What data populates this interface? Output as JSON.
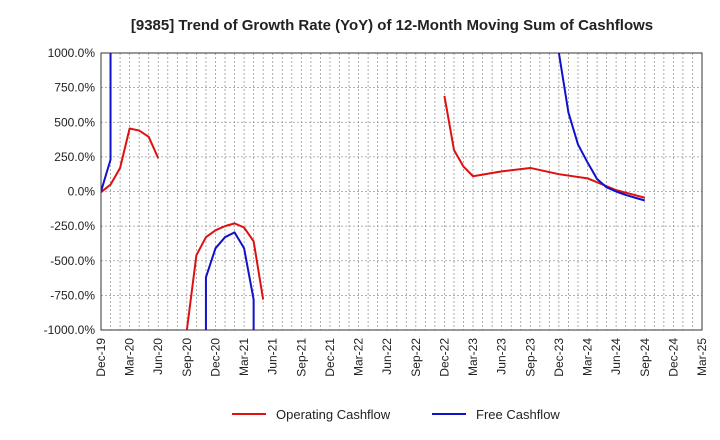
{
  "title": "[9385]  Trend of Growth Rate (YoY) of 12-Month Moving Sum of Cashflows",
  "colors": {
    "operating": "#dd1111",
    "free": "#1111cc",
    "grid": "#999999",
    "axis": "#333333"
  },
  "chart_data": {
    "type": "line",
    "title": "[9385]  Trend of Growth Rate (YoY) of 12-Month Moving Sum of Cashflows",
    "xlabel": "",
    "ylabel": "",
    "ylim": [
      -1000,
      1000
    ],
    "xlim": [
      "2019-12",
      "2025-03"
    ],
    "y_ticks": [
      "1000.0%",
      "750.0%",
      "500.0%",
      "250.0%",
      "0.0%",
      "-250.0%",
      "-500.0%",
      "-750.0%",
      "-1000.0%"
    ],
    "x_ticks": [
      "Dec-19",
      "Mar-20",
      "Jun-20",
      "Sep-20",
      "Dec-20",
      "Mar-21",
      "Jun-21",
      "Sep-21",
      "Dec-21",
      "Mar-22",
      "Jun-22",
      "Sep-22",
      "Dec-22",
      "Mar-23",
      "Jun-23",
      "Sep-23",
      "Dec-23",
      "Mar-24",
      "Jun-24",
      "Sep-24",
      "Dec-24",
      "Mar-25"
    ],
    "grid": true,
    "legend_position": "bottom-center",
    "series": [
      {
        "name": "Operating Cashflow",
        "color": "#dd1111",
        "segments": [
          [
            [
              "2019-12",
              -5
            ],
            [
              "2020-01",
              50
            ],
            [
              "2020-02",
              170
            ],
            [
              "2020-03",
              455
            ],
            [
              "2020-04",
              440
            ],
            [
              "2020-05",
              395
            ],
            [
              "2020-06",
              240
            ]
          ],
          [
            [
              "2020-09",
              -1000
            ],
            [
              "2020-10",
              -460
            ],
            [
              "2020-11",
              -330
            ],
            [
              "2020-12",
              -280
            ],
            [
              "2021-01",
              -250
            ],
            [
              "2021-02",
              -230
            ],
            [
              "2021-03",
              -260
            ],
            [
              "2021-04",
              -360
            ],
            [
              "2021-05",
              -780
            ]
          ],
          [
            [
              "2022-12",
              690
            ],
            [
              "2023-01",
              300
            ],
            [
              "2023-02",
              180
            ],
            [
              "2023-03",
              110
            ],
            [
              "2023-06",
              145
            ],
            [
              "2023-09",
              170
            ],
            [
              "2023-12",
              125
            ],
            [
              "2024-03",
              95
            ],
            [
              "2024-06",
              10
            ],
            [
              "2024-09",
              -45
            ]
          ]
        ]
      },
      {
        "name": "Free Cashflow",
        "color": "#1111cc",
        "segments": [
          [
            [
              "2019-12",
              0
            ],
            [
              "2020-01",
              230
            ],
            [
              "2020-01",
              1000
            ]
          ],
          [
            [
              "2020-11",
              -1000
            ],
            [
              "2020-11",
              -620
            ],
            [
              "2020-12",
              -410
            ],
            [
              "2021-01",
              -330
            ],
            [
              "2021-02",
              -295
            ],
            [
              "2021-03",
              -410
            ],
            [
              "2021-04",
              -780
            ],
            [
              "2021-04",
              -1000
            ]
          ],
          [
            [
              "2023-12",
              1000
            ],
            [
              "2024-01",
              570
            ],
            [
              "2024-02",
              340
            ],
            [
              "2024-03",
              210
            ],
            [
              "2024-04",
              90
            ],
            [
              "2024-05",
              30
            ],
            [
              "2024-06",
              0
            ],
            [
              "2024-07",
              -25
            ],
            [
              "2024-08",
              -45
            ],
            [
              "2024-09",
              -65
            ]
          ]
        ]
      }
    ]
  }
}
